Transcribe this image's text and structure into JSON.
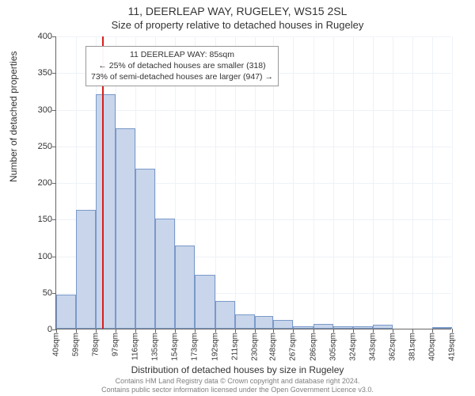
{
  "titles": {
    "main": "11, DEERLEAP WAY, RUGELEY, WS15 2SL",
    "sub": "Size of property relative to detached houses in Rugeley"
  },
  "chart": {
    "type": "histogram",
    "y_axis": {
      "label": "Number of detached properties",
      "min": 0,
      "max": 400,
      "tick_step": 50,
      "grid_color": "#eef2f7",
      "axis_color": "#666666",
      "label_fontsize": 12,
      "tick_fontsize": 11
    },
    "x_axis": {
      "label": "Distribution of detached houses by size in Rugeley",
      "unit": "sqm",
      "ticks": [
        40,
        59,
        78,
        97,
        116,
        135,
        154,
        173,
        192,
        211,
        230,
        248,
        267,
        286,
        305,
        324,
        343,
        362,
        381,
        400,
        419
      ],
      "label_fontsize": 12,
      "tick_fontsize": 10
    },
    "bars": {
      "fill": "#c8d5ea",
      "border": "#7a99c9",
      "values": [
        46,
        162,
        320,
        273,
        218,
        150,
        113,
        73,
        38,
        20,
        17,
        12,
        3,
        6,
        3,
        3,
        5,
        0,
        0,
        1
      ]
    },
    "reference_line": {
      "value": 85,
      "color": "#d81e1e",
      "width": 2
    },
    "annotation": {
      "line1": "11 DEERLEAP WAY: 85sqm",
      "line2": "← 25% of detached houses are smaller (318)",
      "line3": "73% of semi-detached houses are larger (947) →",
      "border": "#999999",
      "background": "#ffffff",
      "fontsize": 10.5
    },
    "background_color": "#ffffff"
  },
  "footer": {
    "line1": "Contains HM Land Registry data © Crown copyright and database right 2024.",
    "line2": "Contains public sector information licensed under the Open Government Licence v3.0."
  }
}
